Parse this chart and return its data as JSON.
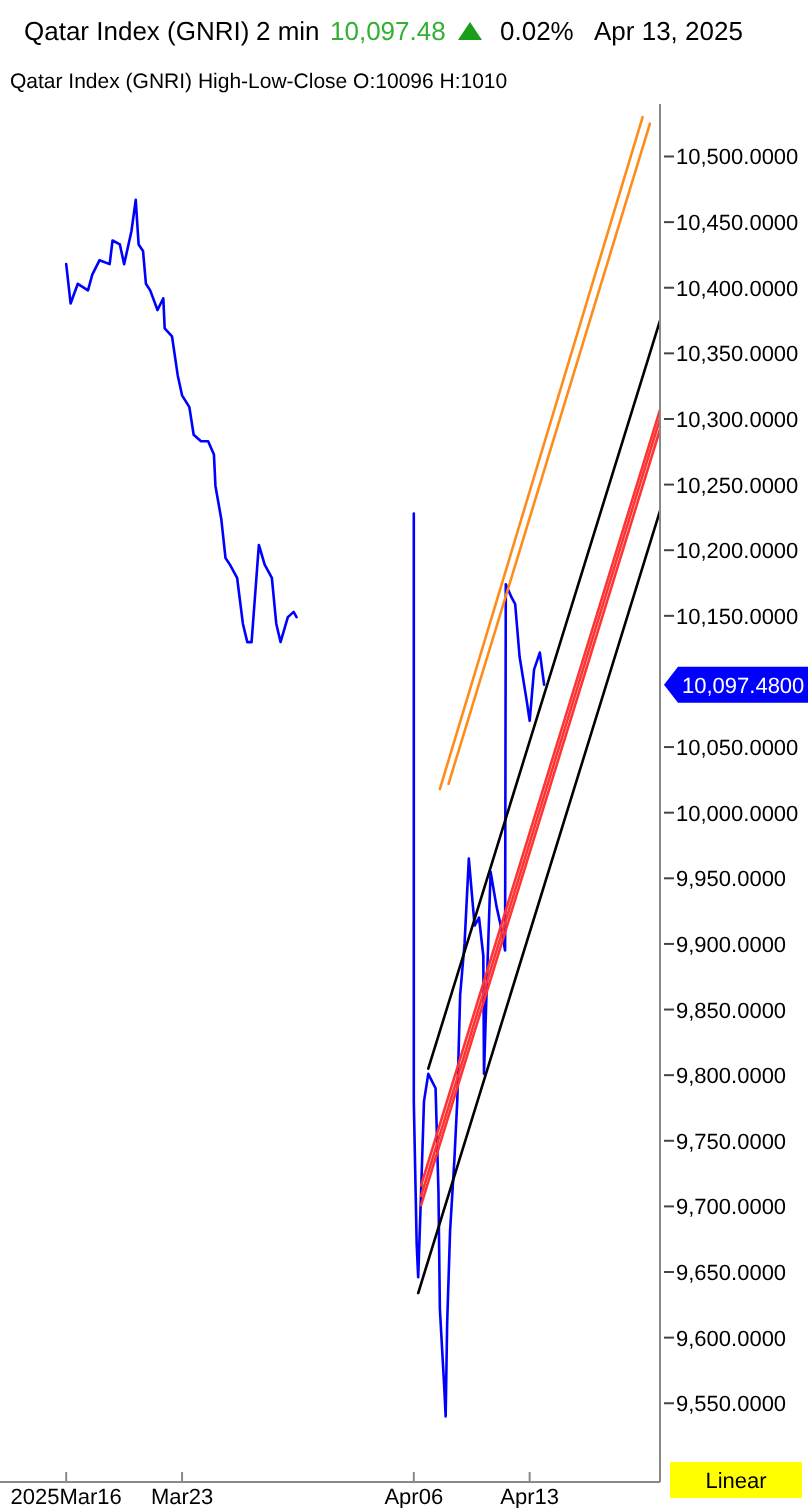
{
  "chart_data": {
    "type": "line",
    "title": "Qatar Index  (GNRI)",
    "subtitle": "Qatar Index (GNRI)  High-Low-Close   O:10096   H:1010",
    "annotations": [
      "2 min",
      "10,097.48",
      "0.02%",
      "Apr 13, 2025",
      "Linear",
      "10,097.4800"
    ],
    "xlim": [
      "2025-03-12",
      "2025-04-20T21:00"
    ],
    "xticks": [
      {
        "value": "2025-03-16",
        "label": "2025Mar16"
      },
      {
        "value": "2025-03-23",
        "label": "Mar23"
      },
      {
        "value": "2025-04-06",
        "label": "Apr06"
      },
      {
        "value": "2025-04-13",
        "label": "Apr13"
      }
    ],
    "ylim": [
      9490,
      10540
    ],
    "yticks": [
      {
        "value": 9550,
        "label": "9,550.0000"
      },
      {
        "value": 9600,
        "label": "9,600.0000"
      },
      {
        "value": 9650,
        "label": "9,650.0000"
      },
      {
        "value": 9700,
        "label": "9,700.0000"
      },
      {
        "value": 9750,
        "label": "9,750.0000"
      },
      {
        "value": 9800,
        "label": "9,800.0000"
      },
      {
        "value": 9850,
        "label": "9,850.0000"
      },
      {
        "value": 9900,
        "label": "9,900.0000"
      },
      {
        "value": 9950,
        "label": "9,950.0000"
      },
      {
        "value": 10000,
        "label": "10,000.0000"
      },
      {
        "value": 10050,
        "label": "10,050.0000"
      },
      {
        "value": 10150,
        "label": "10,150.0000"
      },
      {
        "value": 10200,
        "label": "10,200.0000"
      },
      {
        "value": 10250,
        "label": "10,250.0000"
      },
      {
        "value": 10300,
        "label": "10,300.0000"
      },
      {
        "value": 10350,
        "label": "10,350.0000"
      },
      {
        "value": 10400,
        "label": "10,400.0000"
      },
      {
        "value": 10450,
        "label": "10,450.0000"
      },
      {
        "value": 10500,
        "label": "10,500.0000"
      }
    ],
    "grid": false,
    "marker": "none",
    "line_style": "solid",
    "series": [
      {
        "color": "#0000ff",
        "x": [
          "2025-03-16T00:00",
          "2025-03-16T06:23",
          "2025-03-16T16:48",
          "2025-03-17T07:35",
          "2025-03-17T13:48",
          "2025-03-18T00:23",
          "2025-03-18T15:00",
          "2025-03-18T19:12",
          "2025-03-19T05:47",
          "2025-03-19T12:00",
          "2025-03-19T22:35",
          "2025-03-20T04:48",
          "2025-03-20T09:00",
          "2025-03-20T15:23",
          "2025-03-20T19:35",
          "2025-03-21T01:48",
          "2025-03-21T12:23",
          "2025-03-21T20:47",
          "2025-03-21T22:48",
          "2025-03-22T09:23",
          "2025-03-22T17:47",
          "2025-03-23T00:00",
          "2025-03-23T10:35",
          "2025-03-23T16:48",
          "2025-03-24T03:23",
          "2025-03-24T13:48",
          "2025-03-24T22:12",
          "2025-03-25T00:23",
          "2025-03-25T08:47",
          "2025-03-25T15:00",
          "2025-03-25T21:23",
          "2025-03-26T07:48",
          "2025-03-26T16:12",
          "2025-03-26T22:35",
          "2025-03-27T04:48",
          "2025-03-27T13:12",
          "2025-03-27T15:23",
          "2025-03-27T23:47",
          "2025-03-28T10:12",
          "2025-03-28T16:35",
          "2025-03-28T22:48",
          "2025-03-29T09:23",
          "2025-03-29T17:47",
          "2025-03-29T21:59",
          "2025-04-02T00:00",
          "2025-04-06T00:00",
          "2025-04-06T00:01",
          "2025-04-06T04:12",
          "2025-04-06T06:23",
          "2025-04-06T10:35",
          "2025-04-06T14:47",
          "2025-04-06T21:00",
          "2025-04-07T07:35",
          "2025-04-07T11:47",
          "2025-04-07T13:48",
          "2025-04-07T20:11",
          "2025-04-07T22:12",
          "2025-04-08T00:23",
          "2025-04-08T04:35",
          "2025-04-08T10:48",
          "2025-04-08T15:00",
          "2025-04-08T19:12",
          "2025-04-09T01:35",
          "2025-04-09T07:48",
          "2025-04-09T16:12",
          "2025-04-09T22:35",
          "2025-04-10T04:48",
          "2025-04-10T05:48",
          "2025-04-10T09:00",
          "2025-04-10T15:23",
          "2025-04-10T23:47",
          "2025-04-11T06:00",
          "2025-04-11T12:23",
          "2025-04-11T13:24",
          "2025-04-11T21:47",
          "2025-04-12T03:00",
          "2025-04-12T09:23",
          "2025-04-12T19:48",
          "2025-04-13T00:00",
          "2025-04-13T06:23",
          "2025-04-13T14:47",
          "2025-04-13T21:00"
        ],
        "values": [
          10418,
          10388,
          10403,
          10398,
          10410,
          10421,
          10418,
          10436,
          10433,
          10418,
          10443,
          10467,
          10433,
          10428,
          10403,
          10398,
          10383,
          10392,
          10369,
          10363,
          10333,
          10318,
          10309,
          10288,
          10283,
          10283,
          10273,
          10249,
          10224,
          10194,
          10189,
          10179,
          10144,
          10130,
          10130,
          10189,
          10204,
          10189,
          10179,
          10144,
          10130,
          10149,
          10153,
          10149,
          null,
          10228,
          9780,
          9671,
          9646,
          9711,
          9780,
          9801,
          9790,
          9711,
          9622,
          9562,
          9540,
          9611,
          9681,
          9735,
          9780,
          9861,
          9900,
          9965,
          9914,
          9920,
          9891,
          9801,
          9855,
          9955,
          9929,
          9914,
          9895,
          10174,
          10164,
          10159,
          10119,
          10085,
          10070,
          10109,
          10122,
          10097.48
        ],
        "value_labels": [
          null,
          null,
          null,
          null,
          null,
          null,
          null,
          null,
          null,
          null,
          null,
          null,
          null,
          null,
          null,
          null,
          null,
          null,
          null,
          null,
          null,
          null,
          null,
          null,
          null,
          null,
          null,
          null,
          null,
          null,
          null,
          null,
          null,
          null,
          null,
          null,
          null,
          null,
          null,
          null,
          null,
          null,
          null,
          null,
          null,
          null,
          null,
          null,
          null,
          null,
          null,
          null,
          null,
          null,
          null,
          null,
          null,
          null,
          null,
          null,
          null,
          null,
          null,
          null,
          null,
          null,
          null,
          null,
          null,
          null,
          null,
          null,
          null,
          null,
          null,
          null,
          null,
          null,
          null,
          null,
          null,
          null
        ]
      },
      {
        "color": "#000000",
        "x": [
          "2025-04-06T21:00",
          "2025-04-20T21:00"
        ],
        "values": [
          9805,
          10375
        ]
      },
      {
        "color": "#000000",
        "x": [
          "2025-04-06T06:23",
          "2025-04-20T21:00"
        ],
        "values": [
          9634,
          10230
        ]
      },
      {
        "color": "#ff3333",
        "x": [
          "2025-04-06T10:35",
          "2025-04-20T21:00"
        ],
        "values": [
          9716,
          10307
        ]
      },
      {
        "color": "#ff3333",
        "x": [
          "2025-04-06T10:35",
          "2025-04-20T21:00"
        ],
        "values": [
          9708,
          10300
        ]
      },
      {
        "color": "#ff3333",
        "x": [
          "2025-04-06T10:35",
          "2025-04-20T21:00"
        ],
        "values": [
          9701,
          10292
        ]
      },
      {
        "color": "#ff8c1a",
        "x": [
          "2025-04-07T13:48",
          "2025-04-19T19:48"
        ],
        "values": [
          10018,
          10530
        ]
      },
      {
        "color": "#ff8c1a",
        "x": [
          "2025-04-08T02:24",
          "2025-04-20T06:23"
        ],
        "values": [
          10022,
          10525
        ]
      }
    ]
  }
}
